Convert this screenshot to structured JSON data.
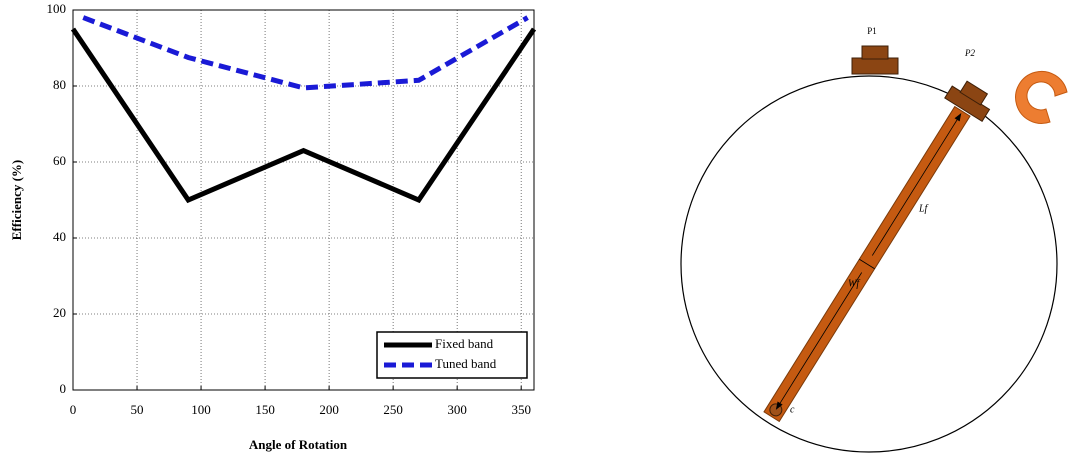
{
  "chart_data": {
    "type": "line",
    "xlabel": "Angle of Rotation",
    "ylabel": "Efficiency (%)",
    "xlim": [
      0,
      360
    ],
    "ylim": [
      0,
      100
    ],
    "xticks": [
      0,
      50,
      100,
      150,
      200,
      250,
      300,
      350
    ],
    "yticks": [
      0,
      20,
      40,
      60,
      80,
      100
    ],
    "grid": true,
    "legend": "lower right",
    "series": [
      {
        "name": "Fixed band",
        "color": "#000000",
        "dash": false,
        "x": [
          0,
          90,
          180,
          270,
          360
        ],
        "values": [
          95,
          50,
          63,
          50,
          95
        ]
      },
      {
        "name": "Tuned band",
        "color": "#1a1ad6",
        "dash": true,
        "x": [
          8,
          90,
          180,
          270,
          355
        ],
        "values": [
          98,
          87.5,
          79.5,
          81.5,
          98
        ]
      }
    ]
  },
  "diagram": {
    "p1": "P1",
    "p2": "P2",
    "lf": "Lf",
    "wf": "Wf",
    "c": "c"
  }
}
